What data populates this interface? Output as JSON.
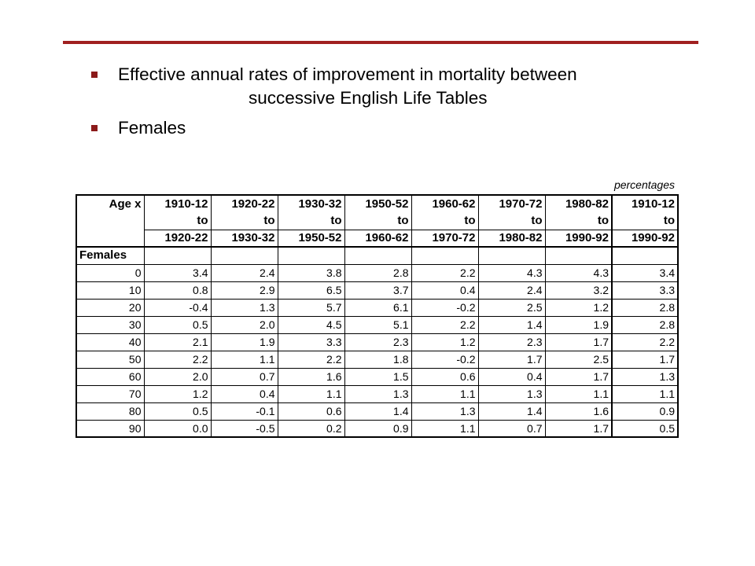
{
  "slide": {
    "bullet1_line1": "Effective annual rates of improvement in mortality between",
    "bullet1_line2": "successive English Life Tables",
    "bullet2": "Females",
    "accent_color": "#a02020"
  },
  "table": {
    "units": "percentages",
    "age_header": "Age x",
    "periods": [
      {
        "from": "1910-12",
        "to_word": "to",
        "to": "1920-22"
      },
      {
        "from": "1920-22",
        "to_word": "to",
        "to": "1930-32"
      },
      {
        "from": "1930-32",
        "to_word": "to",
        "to": "1950-52"
      },
      {
        "from": "1950-52",
        "to_word": "to",
        "to": "1960-62"
      },
      {
        "from": "1960-62",
        "to_word": "to",
        "to": "1970-72"
      },
      {
        "from": "1970-72",
        "to_word": "to",
        "to": "1980-82"
      },
      {
        "from": "1980-82",
        "to_word": "to",
        "to": "1990-92"
      },
      {
        "from": "1910-12",
        "to_word": "to",
        "to": "1990-92"
      }
    ],
    "section_label": "Females",
    "rows": [
      {
        "age": "0",
        "values": [
          "3.4",
          "2.4",
          "3.8",
          "2.8",
          "2.2",
          "4.3",
          "4.3",
          "3.4"
        ]
      },
      {
        "age": "10",
        "values": [
          "0.8",
          "2.9",
          "6.5",
          "3.7",
          "0.4",
          "2.4",
          "3.2",
          "3.3"
        ]
      },
      {
        "age": "20",
        "values": [
          "-0.4",
          "1.3",
          "5.7",
          "6.1",
          "-0.2",
          "2.5",
          "1.2",
          "2.8"
        ]
      },
      {
        "age": "30",
        "values": [
          "0.5",
          "2.0",
          "4.5",
          "5.1",
          "2.2",
          "1.4",
          "1.9",
          "2.8"
        ]
      },
      {
        "age": "40",
        "values": [
          "2.1",
          "1.9",
          "3.3",
          "2.3",
          "1.2",
          "2.3",
          "1.7",
          "2.2"
        ]
      },
      {
        "age": "50",
        "values": [
          "2.2",
          "1.1",
          "2.2",
          "1.8",
          "-0.2",
          "1.7",
          "2.5",
          "1.7"
        ]
      },
      {
        "age": "60",
        "values": [
          "2.0",
          "0.7",
          "1.6",
          "1.5",
          "0.6",
          "0.4",
          "1.7",
          "1.3"
        ]
      },
      {
        "age": "70",
        "values": [
          "1.2",
          "0.4",
          "1.1",
          "1.3",
          "1.1",
          "1.3",
          "1.1",
          "1.1"
        ]
      },
      {
        "age": "80",
        "values": [
          "0.5",
          "-0.1",
          "0.6",
          "1.4",
          "1.3",
          "1.4",
          "1.6",
          "0.9"
        ]
      },
      {
        "age": "90",
        "values": [
          "0.0",
          "-0.5",
          "0.2",
          "0.9",
          "1.1",
          "0.7",
          "1.7",
          "0.5"
        ]
      }
    ]
  }
}
